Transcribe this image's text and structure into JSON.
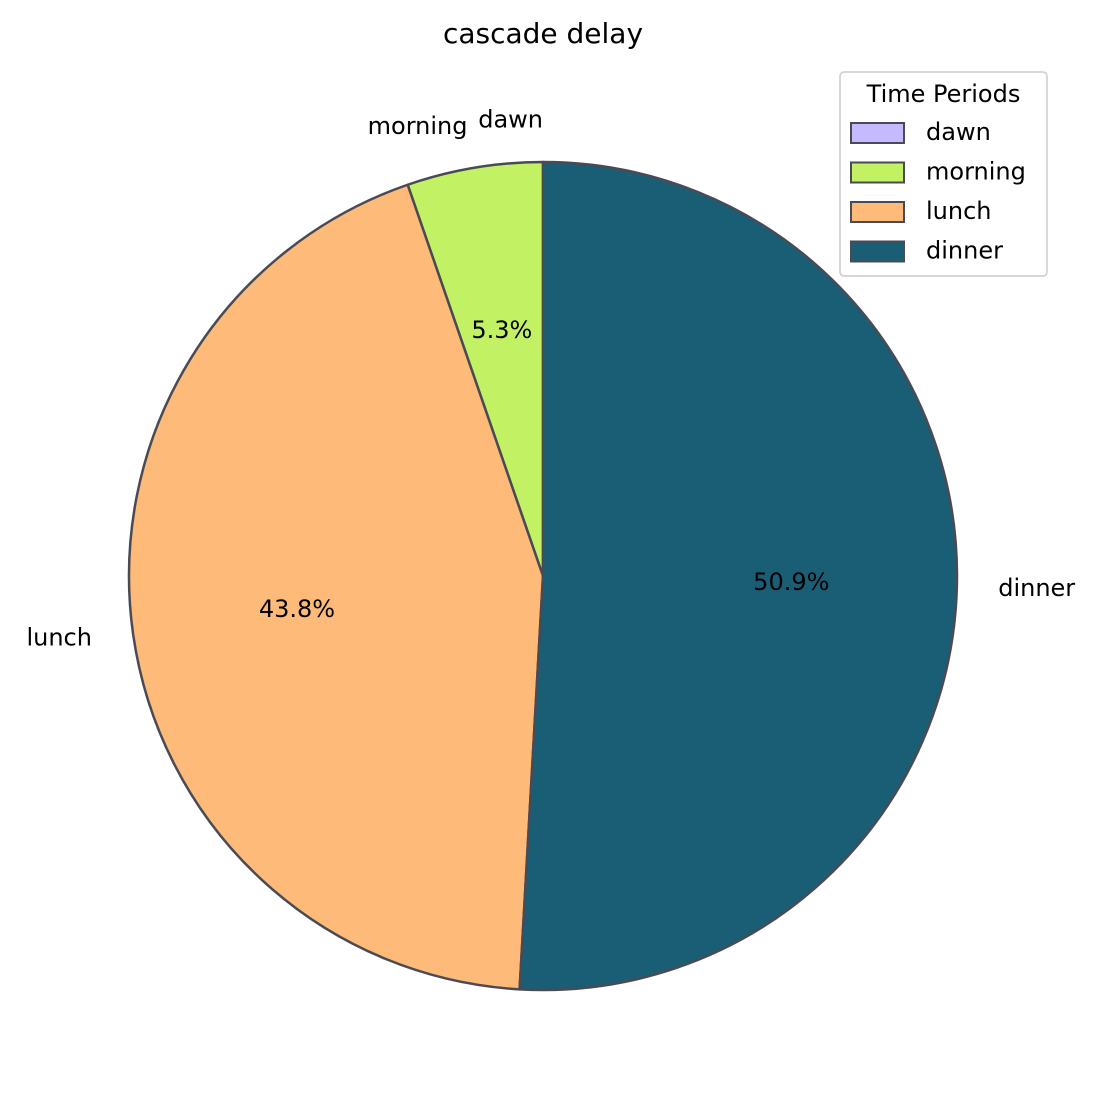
{
  "chart_data": {
    "type": "pie",
    "title": "cascade delay",
    "categories": [
      "dawn",
      "morning",
      "lunch",
      "dinner"
    ],
    "values": [
      0.0,
      5.3,
      43.8,
      50.9
    ],
    "percent_labels": [
      "",
      "5.3%",
      "43.8%",
      "50.9%"
    ],
    "colors": [
      "#c5b9ff",
      "#c2f263",
      "#fdba78",
      "#1a5e75"
    ],
    "edge_color": "#4a4a55",
    "start_angle_deg": 90,
    "direction": "counterclockwise",
    "legend": {
      "title": "Time Periods",
      "placement": "top-right",
      "entries": [
        "dawn",
        "morning",
        "lunch",
        "dinner"
      ]
    }
  }
}
